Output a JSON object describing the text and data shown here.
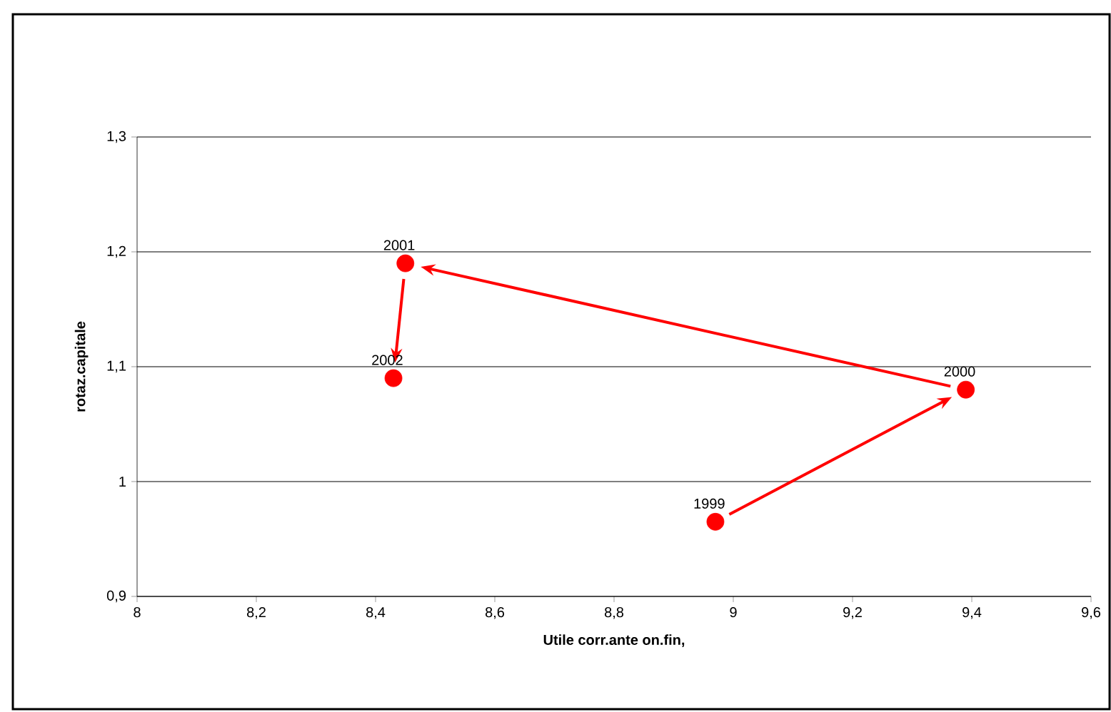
{
  "chart_data": {
    "type": "scatter",
    "xlabel": "Utile corr.ante on.fin,",
    "ylabel": "rotaz.capitale",
    "x": [
      8.97,
      9.39,
      8.45,
      8.43
    ],
    "values": [
      0.965,
      1.08,
      1.19,
      1.09
    ],
    "color": "#ff0000",
    "marker": "circle",
    "grid": "y",
    "xlim": [
      8,
      9.6
    ],
    "xticks": [
      8,
      {
        "value": 8.2,
        "label": "8,2"
      },
      {
        "value": 8.4,
        "label": "8,4"
      },
      {
        "value": 8.6,
        "label": "8,6"
      },
      {
        "value": 8.8,
        "label": "8,8"
      },
      9,
      {
        "value": 9.2,
        "label": "9,2"
      },
      {
        "value": 9.4,
        "label": "9,4"
      },
      {
        "value": 9.6,
        "label": "9,6"
      }
    ],
    "ylim": [
      0.9,
      1.3
    ],
    "yticks": [
      {
        "value": 0.9,
        "label": "0,9"
      },
      1,
      {
        "value": 1.1,
        "label": "1,1"
      },
      {
        "value": 1.2,
        "label": "1,2"
      },
      {
        "value": 1.3,
        "label": "1,3"
      }
    ],
    "annotations": [
      {
        "text": "1999",
        "x": 8.97,
        "y": 0.965
      },
      {
        "text": "2000",
        "x": 9.39,
        "y": 1.08
      },
      {
        "text": "2001",
        "x": 8.45,
        "y": 1.19
      },
      {
        "text": "2002",
        "x": 8.43,
        "y": 1.09
      }
    ]
  }
}
